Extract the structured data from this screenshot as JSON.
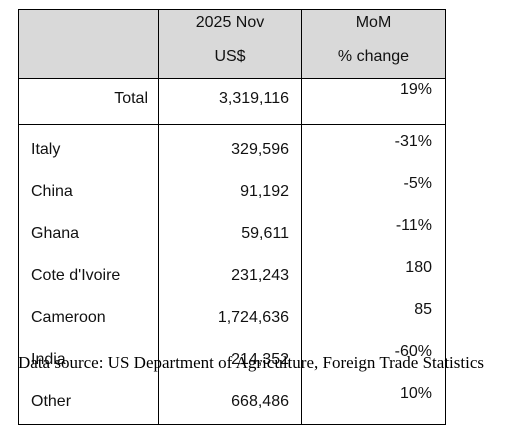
{
  "header": {
    "col2_line1": "2025 Nov",
    "col2_line2": "US$",
    "col3_line1": "MoM",
    "col3_line2": "% change"
  },
  "total": {
    "label": "Total",
    "value": "3,319,116",
    "change": "19%"
  },
  "rows": [
    {
      "country": "Italy",
      "value": "329,596",
      "change": "-31%"
    },
    {
      "country": "China",
      "value": "91,192",
      "change": "-5%"
    },
    {
      "country": "Ghana",
      "value": "59,611",
      "change": "-11%"
    },
    {
      "country": "Cote d'Ivoire",
      "value": "231,243",
      "change": "180"
    },
    {
      "country": "Cameroon",
      "value": "1,724,636",
      "change": "85"
    },
    {
      "country": "India",
      "value": "214,352",
      "change": "-60%"
    },
    {
      "country": "Other",
      "value": "668,486",
      "change": "10%"
    }
  ],
  "source": "Data source: US Department of Agriculture, Foreign Trade Statistics"
}
